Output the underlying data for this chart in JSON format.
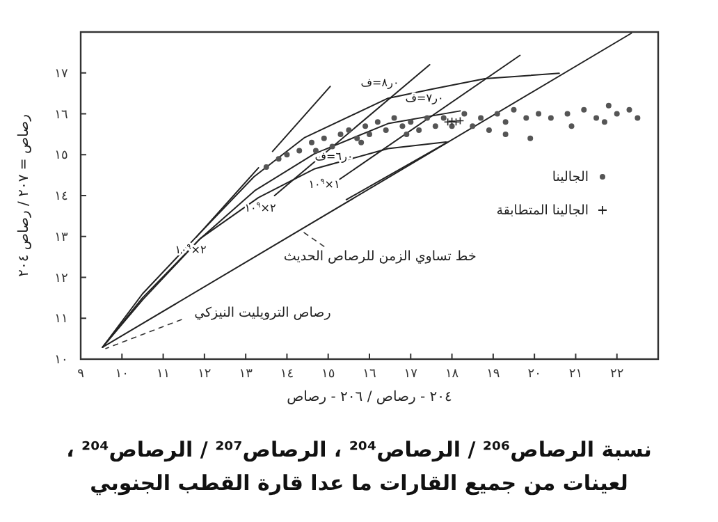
{
  "chart_data": {
    "type": "line",
    "title": "نسبة الرصاص²⁰⁶ / الرصاص²⁰⁴ ، الرصاص²⁰⁷ / الرصاص²⁰⁴ ، لعينات من جميع القارات ما عدا قارة القطب الجنوبي",
    "xlabel": "٢٠٤ - رصاص / ٢٠٦ - رصاص",
    "ylabel": "رصاص = ٢٠٧ / رصاص ٢٠٤",
    "xlim": [
      9,
      23
    ],
    "ylim": [
      10,
      18
    ],
    "xticks": [
      {
        "value": 9,
        "label": "٩"
      },
      {
        "value": 10,
        "label": "١٠"
      },
      {
        "value": 11,
        "label": "١١"
      },
      {
        "value": 12,
        "label": "١٢"
      },
      {
        "value": 13,
        "label": "١٣"
      },
      {
        "value": 14,
        "label": "١٤"
      },
      {
        "value": 15,
        "label": "١٥"
      },
      {
        "value": 16,
        "label": "١٦"
      },
      {
        "value": 17,
        "label": "١٧"
      },
      {
        "value": 18,
        "label": "١٨"
      },
      {
        "value": 19,
        "label": "١٩"
      },
      {
        "value": 20,
        "label": "٢٠"
      },
      {
        "value": 21,
        "label": "٢١"
      },
      {
        "value": 22,
        "label": "٢٢"
      }
    ],
    "yticks": [
      {
        "value": 10,
        "label": "١٠"
      },
      {
        "value": 11,
        "label": "١١"
      },
      {
        "value": 12,
        "label": "١٢"
      },
      {
        "value": 13,
        "label": "١٣"
      },
      {
        "value": 14,
        "label": "١٤"
      },
      {
        "value": 15,
        "label": "١٥"
      },
      {
        "value": 16,
        "label": "١٦"
      },
      {
        "value": 17,
        "label": "١٧"
      }
    ],
    "grid": false,
    "legend": "right",
    "line_style": "solid",
    "series": [
      {
        "type": "line",
        "color": "#222222",
        "x": [
          9.53,
          10.5,
          11.85,
          13.2,
          14.43,
          16.45,
          17.5,
          18.8,
          20.6
        ],
        "values": [
          10.29,
          11.6,
          13.04,
          14.46,
          15.42,
          16.38,
          16.6,
          16.86,
          16.99
        ]
      },
      {
        "type": "line",
        "color": "#222222",
        "x": [
          9.53,
          10.5,
          11.85,
          13.22,
          14.66,
          16.45,
          18.2
        ],
        "values": [
          10.29,
          11.5,
          12.9,
          14.12,
          15.02,
          15.76,
          16.07
        ]
      },
      {
        "type": "line",
        "color": "#222222",
        "x": [
          9.53,
          10.5,
          11.9,
          13.31,
          14.66,
          16.45,
          17.86
        ],
        "values": [
          10.29,
          11.45,
          12.95,
          13.95,
          14.65,
          15.15,
          15.31
        ]
      },
      {
        "type": "line",
        "color": "#222222",
        "x": [
          9.53,
          22.35
        ],
        "values": [
          10.29,
          17.97
        ]
      },
      {
        "type": "line",
        "color": "#222222",
        "x": [
          13.65,
          15.05
        ],
        "values": [
          15.08,
          16.67
        ]
      },
      {
        "type": "line",
        "color": "#222222",
        "x": [
          13.7,
          17.46
        ],
        "values": [
          14.0,
          17.2
        ]
      },
      {
        "type": "line",
        "color": "#222222",
        "x": [
          15.28,
          19.65
        ],
        "values": [
          14.4,
          17.43
        ]
      },
      {
        "type": "line",
        "color": "#222222",
        "x": [
          11.8,
          13.31
        ],
        "values": [
          12.98,
          14.68
        ]
      },
      {
        "type": "line",
        "color": "#222222",
        "x": [
          15.44,
          17.9
        ],
        "values": [
          13.9,
          15.31
        ]
      },
      {
        "type": "scatter",
        "name": "الجالينا",
        "color": "#555555",
        "marker": "circle",
        "x": [
          13.5,
          13.8,
          14.0,
          14.3,
          14.6,
          14.9,
          15.1,
          15.3,
          15.5,
          15.7,
          15.9,
          16.0,
          16.2,
          16.4,
          16.6,
          16.8,
          17.0,
          17.2,
          17.4,
          17.6,
          17.8,
          18.0,
          18.3,
          18.5,
          18.7,
          18.9,
          19.1,
          19.3,
          19.5,
          19.8,
          20.1,
          20.4,
          20.8,
          21.2,
          21.5,
          21.8,
          22.0,
          22.3,
          22.5,
          19.9,
          19.3,
          20.9,
          21.7,
          14.7,
          15.8,
          16.9
        ],
        "values": [
          14.7,
          14.9,
          15.0,
          15.1,
          15.3,
          15.4,
          15.2,
          15.5,
          15.6,
          15.4,
          15.7,
          15.5,
          15.8,
          15.6,
          15.9,
          15.7,
          15.8,
          15.6,
          15.9,
          15.7,
          15.9,
          15.7,
          16.0,
          15.7,
          15.9,
          15.6,
          16.0,
          15.8,
          16.1,
          15.9,
          16.0,
          15.9,
          16.0,
          16.1,
          15.9,
          16.2,
          16.0,
          16.1,
          15.9,
          15.4,
          15.5,
          15.7,
          15.8,
          15.1,
          15.3,
          15.5
        ]
      },
      {
        "type": "scatter",
        "name": "الجالينا المتطابقة",
        "color": "#222222",
        "marker": "cross",
        "x": [
          17.9,
          18.0,
          18.1,
          18.2
        ],
        "values": [
          15.8,
          15.82,
          15.8,
          15.83
        ]
      }
    ],
    "annotations": [
      {
        "text": "خط تساوي الزمن للرصاص الحديث",
        "x": 14.3,
        "y": 13.16
      },
      {
        "text": "رصاص الترويليت النيزكي",
        "x": 9.53,
        "y": 10.29
      },
      "٠ر٨=ف",
      "٠ر٧=ف",
      "٠ر٦=ف",
      "٢×١٠$^{٩}$",
      "٢×١٠$^{٩}$",
      "١×١٠$^{٩}$"
    ]
  }
}
